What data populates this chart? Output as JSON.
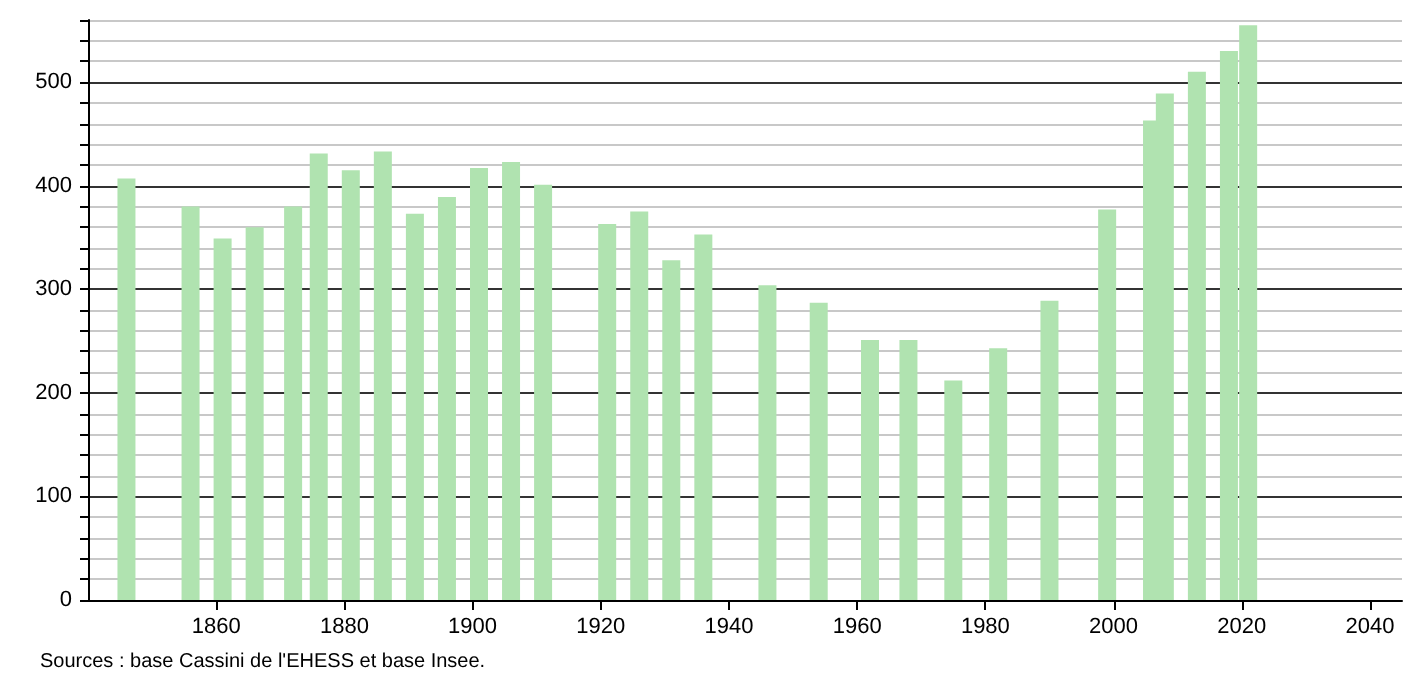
{
  "chart_data": {
    "type": "bar",
    "x": [
      1846,
      1856,
      1861,
      1866,
      1872,
      1876,
      1881,
      1886,
      1891,
      1896,
      1901,
      1906,
      1911,
      1921,
      1926,
      1931,
      1936,
      1946,
      1954,
      1962,
      1968,
      1975,
      1982,
      1990,
      1999,
      2006,
      2008,
      2013,
      2018,
      2021
    ],
    "values": [
      407,
      380,
      349,
      360,
      380,
      431,
      415,
      433,
      373,
      389,
      417,
      423,
      401,
      363,
      375,
      328,
      353,
      304,
      287,
      251,
      251,
      212,
      243,
      289,
      377,
      463,
      489,
      510,
      530,
      555
    ],
    "color": "#b0e3b0",
    "xlim": [
      1840,
      2045
    ],
    "xticks": [
      1860,
      1880,
      1900,
      1920,
      1940,
      1960,
      1980,
      2000,
      2020,
      2040
    ],
    "ylim": [
      0,
      560
    ],
    "yticks": [
      0,
      {
        "value": 20,
        "label": null
      },
      {
        "value": 40,
        "label": null
      },
      {
        "value": 60,
        "label": null
      },
      {
        "value": 80,
        "label": null
      },
      100,
      {
        "value": 120,
        "label": null
      },
      {
        "value": 140,
        "label": null
      },
      {
        "value": 160,
        "label": null
      },
      {
        "value": 180,
        "label": null
      },
      200,
      {
        "value": 220,
        "label": null
      },
      {
        "value": 240,
        "label": null
      },
      {
        "value": 260,
        "label": null
      },
      {
        "value": 280,
        "label": null
      },
      300,
      {
        "value": 320,
        "label": null
      },
      {
        "value": 340,
        "label": null
      },
      {
        "value": 360,
        "label": null
      },
      {
        "value": 380,
        "label": null
      },
      400,
      {
        "value": 420,
        "label": null
      },
      {
        "value": 440,
        "label": null
      },
      {
        "value": 460,
        "label": null
      },
      {
        "value": 480,
        "label": null
      },
      500,
      {
        "value": 520,
        "label": null
      },
      {
        "value": 540,
        "label": null
      },
      {
        "value": 560,
        "label": null
      }
    ],
    "grid": "y",
    "annotations": [
      "Sources : base Cassini de l'EHESS et base Insee."
    ]
  }
}
